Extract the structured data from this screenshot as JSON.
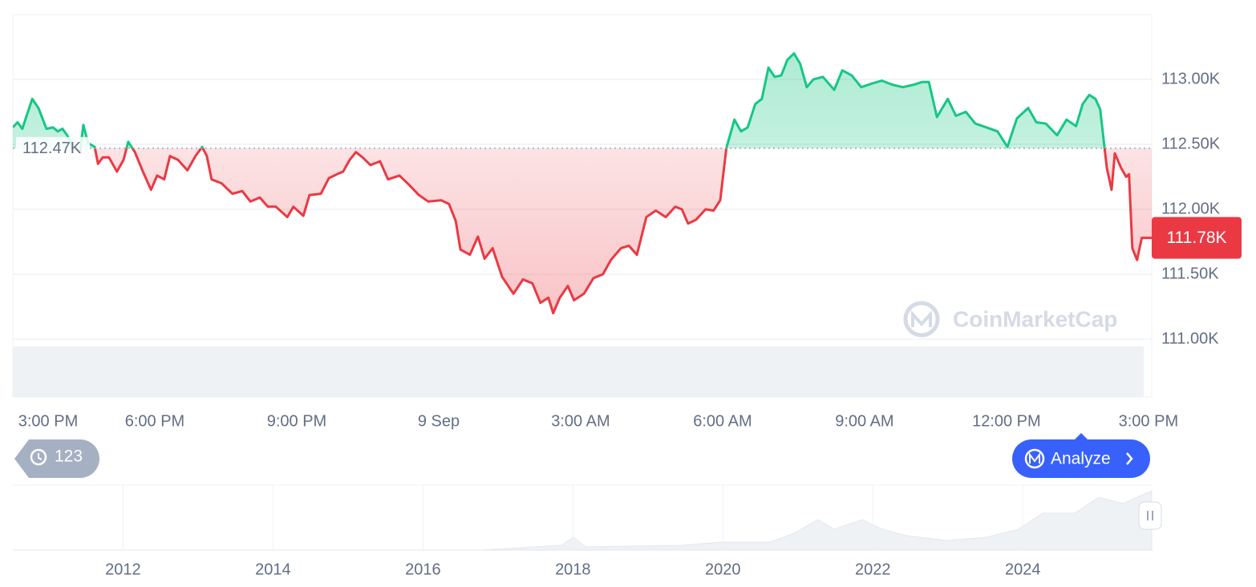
{
  "chart_data": {
    "type": "line",
    "x": [
      0.0,
      0.1,
      0.2,
      0.41,
      0.54,
      0.71,
      0.85,
      0.95,
      1.05,
      1.15,
      1.29,
      1.42,
      1.49,
      1.59,
      1.73,
      1.8,
      1.9,
      2.03,
      2.2,
      2.34,
      2.44,
      2.58,
      2.75,
      2.92,
      3.05,
      3.2,
      3.32,
      3.49,
      3.69,
      3.86,
      4.0,
      4.1,
      4.2,
      4.41,
      4.64,
      4.85,
      5.02,
      5.22,
      5.39,
      5.56,
      5.8,
      5.93,
      6.14,
      6.27,
      6.51,
      6.68,
      6.85,
      6.98,
      7.12,
      7.25,
      7.39,
      7.56,
      7.76,
      7.93,
      8.17,
      8.37,
      8.58,
      8.78,
      9.05,
      9.22,
      9.36,
      9.46,
      9.66,
      9.83,
      9.97,
      10.14,
      10.34,
      10.58,
      10.78,
      10.98,
      11.15,
      11.32,
      11.42,
      11.56,
      11.73,
      11.86,
      12.07,
      12.27,
      12.47,
      12.64,
      12.85,
      13.02,
      13.19,
      13.39,
      13.59,
      13.8,
      14.0,
      14.14,
      14.27,
      14.44,
      14.64,
      14.81,
      14.95,
      15.08,
      15.25,
      15.39,
      15.53,
      15.69,
      15.83,
      15.97,
      16.1,
      16.24,
      16.37,
      16.51,
      16.64,
      16.78,
      16.92,
      17.12,
      17.36,
      17.53,
      17.73,
      17.93,
      18.17,
      18.37,
      18.58,
      18.81,
      19.05,
      19.22,
      19.36,
      19.53,
      19.76,
      19.93,
      20.14,
      20.34,
      20.58,
      20.81,
      21.02,
      21.22,
      21.46,
      21.63,
      21.83,
      22.07,
      22.27,
      22.47,
      22.61,
      22.75,
      22.88,
      22.98,
      23.12,
      23.22,
      23.29,
      23.42,
      23.53,
      23.59,
      23.66,
      23.76,
      23.86,
      24.07
    ],
    "series": [
      {
        "up_color": "#16c784",
        "down_color": "#ea3943",
        "values": [
          112630,
          112670,
          112620,
          112850,
          112780,
          112620,
          112630,
          112600,
          112620,
          112570,
          112480,
          112440,
          112650,
          112510,
          112480,
          112350,
          112400,
          112400,
          112290,
          112380,
          112520,
          112440,
          112290,
          112150,
          112260,
          112230,
          112410,
          112380,
          112300,
          112410,
          112480,
          112410,
          112230,
          112200,
          112120,
          112140,
          112060,
          112090,
          112020,
          112020,
          111940,
          112020,
          111950,
          112110,
          112120,
          112240,
          112270,
          112290,
          112380,
          112440,
          112400,
          112340,
          112370,
          112230,
          112260,
          112190,
          112110,
          112060,
          112070,
          112040,
          111910,
          111690,
          111650,
          111790,
          111620,
          111700,
          111480,
          111350,
          111460,
          111430,
          111280,
          111320,
          111200,
          111320,
          111410,
          111300,
          111350,
          111470,
          111500,
          111610,
          111700,
          111720,
          111650,
          111940,
          111990,
          111940,
          112020,
          112000,
          111890,
          111920,
          112000,
          111990,
          112070,
          112470,
          112690,
          112600,
          112630,
          112810,
          112850,
          113090,
          113020,
          113030,
          113150,
          113200,
          113120,
          112940,
          113000,
          113020,
          112920,
          113070,
          113030,
          112940,
          112970,
          112990,
          112960,
          112940,
          112960,
          112980,
          112980,
          112710,
          112850,
          112720,
          112750,
          112660,
          112630,
          112600,
          112480,
          112700,
          112780,
          112670,
          112660,
          112570,
          112690,
          112640,
          112810,
          112880,
          112850,
          112770,
          112320,
          112150,
          112430,
          112320,
          112250,
          112270,
          111700,
          111610,
          111780,
          111780
        ]
      }
    ],
    "baseline": {
      "value": 112470,
      "label": "112.47K"
    },
    "current": {
      "value": 111780,
      "label": "111.78K"
    },
    "xlim": [
      0,
      24.07
    ],
    "xticks": [
      {
        "value": 0,
        "label": "3:00 PM"
      },
      {
        "value": 3,
        "label": "6:00 PM"
      },
      {
        "value": 6,
        "label": "9:00 PM"
      },
      {
        "value": 9,
        "label": "9 Sep"
      },
      {
        "value": 12,
        "label": "3:00 AM"
      },
      {
        "value": 15,
        "label": "6:00 AM"
      },
      {
        "value": 18,
        "label": "9:00 AM"
      },
      {
        "value": 21,
        "label": "12:00 PM"
      },
      {
        "value": 24,
        "label": "3:00 PM"
      }
    ],
    "ylim": [
      111000,
      113500
    ],
    "yticks": [
      {
        "value": 111000,
        "label": "111.00K"
      },
      {
        "value": 111500,
        "label": "111.50K"
      },
      {
        "value": 112000,
        "label": "112.00K"
      },
      {
        "value": 112500,
        "label": "112.50K"
      },
      {
        "value": 113000,
        "label": "113.00K"
      }
    ],
    "grid": true
  },
  "navigator": {
    "xlim": [
      2010.53,
      2025.72
    ],
    "xticks": [
      2012,
      2014,
      2016,
      2018,
      2020,
      2022,
      2024
    ]
  },
  "ui": {
    "history_count": 123,
    "analyze_button": "Analyze",
    "watermark": "CoinMarketCap"
  }
}
